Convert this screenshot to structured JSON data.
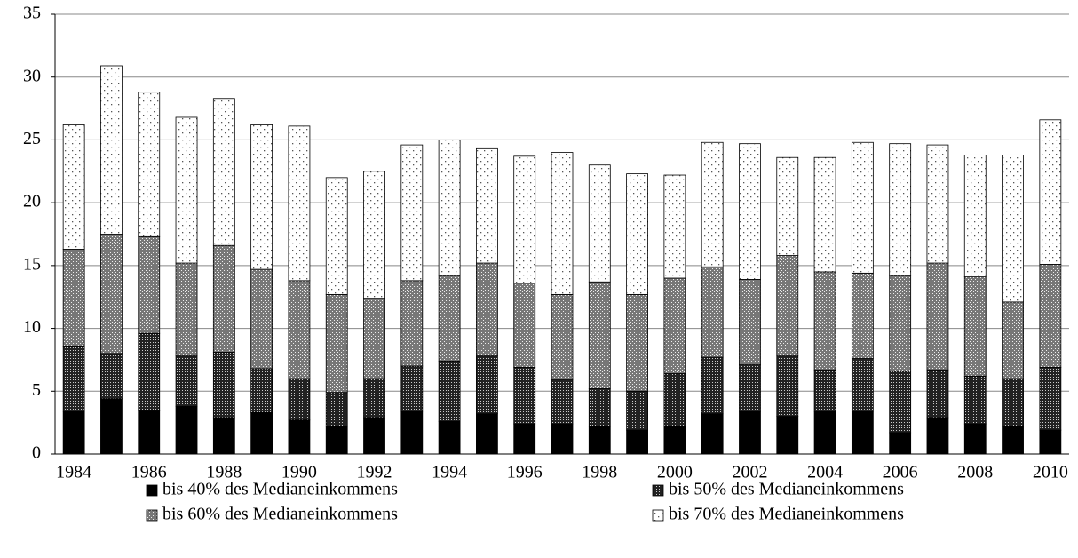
{
  "chart_data": {
    "type": "stacked_bar",
    "categories": [
      "1984",
      null,
      "1986",
      null,
      "1988",
      null,
      "1990",
      null,
      "1992",
      null,
      "1994",
      null,
      "1996",
      null,
      "1998",
      null,
      "2000",
      null,
      "2002",
      null,
      "2004",
      null,
      "2006",
      null,
      "2008",
      null,
      "2010"
    ],
    "series": [
      {
        "name": "bis 40% des Medianeinkommens",
        "color": "#000000",
        "values": [
          3.4,
          4.4,
          3.5,
          3.8,
          2.9,
          3.3,
          2.7,
          2.2,
          2.9,
          3.4,
          2.6,
          3.2,
          2.4,
          2.4,
          2.2,
          1.9,
          2.2,
          3.2,
          3.4,
          3.0,
          3.4,
          3.4,
          1.7,
          2.9,
          2.4,
          2.2,
          1.9
        ]
      },
      {
        "name": "bis 50% des Medianeinkommens",
        "color": "#3a3a3a",
        "values": [
          5.2,
          3.6,
          6.1,
          4.0,
          5.2,
          3.5,
          3.3,
          2.7,
          3.1,
          3.6,
          4.8,
          4.6,
          4.5,
          3.5,
          3.0,
          3.1,
          4.2,
          4.5,
          3.7,
          4.8,
          3.3,
          4.2,
          4.9,
          3.8,
          3.8,
          3.8,
          5.0
        ]
      },
      {
        "name": "bis 60% des Medianeinkommens",
        "color": "#8c8c8c",
        "values": [
          7.7,
          9.5,
          7.7,
          7.4,
          8.5,
          7.9,
          7.8,
          7.8,
          6.4,
          6.8,
          6.8,
          7.4,
          6.7,
          6.8,
          8.5,
          7.7,
          7.6,
          7.2,
          6.8,
          8.0,
          7.8,
          6.8,
          7.6,
          8.5,
          7.9,
          6.1,
          8.2
        ]
      },
      {
        "name": "bis 70% des Medianeinkommens",
        "color": "#ffffff",
        "values": [
          9.9,
          13.4,
          11.5,
          11.6,
          11.7,
          11.5,
          12.3,
          9.3,
          10.1,
          10.8,
          10.8,
          9.1,
          10.1,
          11.3,
          9.3,
          9.6,
          8.2,
          9.9,
          10.8,
          7.8,
          9.1,
          10.4,
          10.5,
          9.4,
          9.7,
          11.7,
          11.5
        ]
      }
    ],
    "ylim": [
      0,
      35
    ],
    "yticks": [
      0,
      5,
      10,
      15,
      20,
      25,
      30,
      35
    ],
    "grid": true
  }
}
